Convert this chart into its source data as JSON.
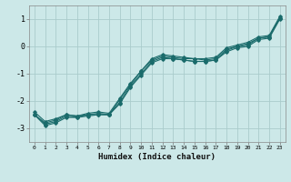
{
  "title": "",
  "xlabel": "Humidex (Indice chaleur)",
  "ylabel": "",
  "bg_color": "#cce8e8",
  "grid_color": "#aacccc",
  "line_color": "#1a6b6b",
  "xlim": [
    -0.5,
    23.5
  ],
  "ylim": [
    -3.5,
    1.5
  ],
  "yticks": [
    -3,
    -2,
    -1,
    0,
    1
  ],
  "xticks": [
    0,
    1,
    2,
    3,
    4,
    5,
    6,
    7,
    8,
    9,
    10,
    11,
    12,
    13,
    14,
    15,
    16,
    17,
    18,
    19,
    20,
    21,
    22,
    23
  ],
  "series": [
    [
      -2.5,
      -2.8,
      -2.7,
      -2.5,
      -2.55,
      -2.5,
      -2.45,
      -2.5,
      -1.95,
      -1.4,
      -0.9,
      -0.5,
      -0.35,
      -0.4,
      -0.45,
      -0.45,
      -0.5,
      -0.45,
      -0.1,
      0.0,
      0.1,
      0.3,
      0.35,
      1.05
    ],
    [
      -2.5,
      -2.85,
      -2.75,
      -2.55,
      -2.6,
      -2.5,
      -2.5,
      -2.5,
      -2.05,
      -1.45,
      -1.0,
      -0.55,
      -0.4,
      -0.45,
      -0.5,
      -0.55,
      -0.55,
      -0.5,
      -0.15,
      0.0,
      0.05,
      0.3,
      0.35,
      1.05
    ],
    [
      -2.5,
      -2.9,
      -2.8,
      -2.6,
      -2.6,
      -2.55,
      -2.5,
      -2.5,
      -2.1,
      -1.5,
      -1.05,
      -0.6,
      -0.45,
      -0.45,
      -0.5,
      -0.55,
      -0.55,
      -0.5,
      -0.2,
      -0.05,
      0.0,
      0.25,
      0.3,
      1.0
    ],
    [
      -2.4,
      -2.75,
      -2.65,
      -2.5,
      -2.55,
      -2.45,
      -2.4,
      -2.45,
      -1.9,
      -1.35,
      -0.9,
      -0.45,
      -0.3,
      -0.35,
      -0.4,
      -0.45,
      -0.45,
      -0.4,
      -0.05,
      0.05,
      0.15,
      0.35,
      0.4,
      1.1
    ]
  ]
}
